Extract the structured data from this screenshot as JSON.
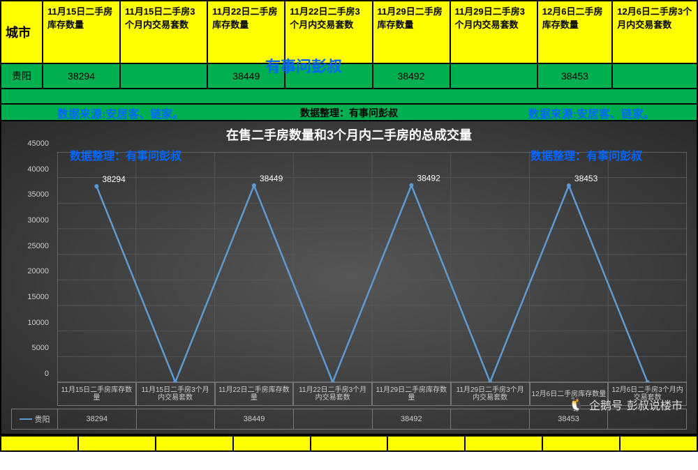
{
  "table": {
    "city_header": "城市",
    "columns": [
      "11月15日二手房库存数量",
      "11月15日二手房3个月内交易套数",
      "11月22日二手房库存数量",
      "11月22日二手房3个月内交易套数",
      "11月29日二手房库存数量",
      "11月29日二手房3个月内交易套数",
      "12月6日二手房库存数量",
      "12月6日二手房3个月内交易套数"
    ],
    "row_city": "贵阳",
    "row_values": [
      "38294",
      "",
      "38449",
      "",
      "38492",
      "",
      "38453",
      ""
    ],
    "header_bg": "#ffff00",
    "data_bg": "#00b050"
  },
  "overlay_title": "有事问彭叔",
  "credits": {
    "source_text": "数据来源:安居客、链家。",
    "compile_text_mid": "数据整理：有事问彭叔",
    "compile_text": "数据整理：有事问彭叔",
    "color": "#0066ff"
  },
  "chart": {
    "type": "line",
    "title": "在售二手房数量和3个月内二手房的总成交量",
    "title_mixed": "在售  手房数量和3个月内二手房的总成",
    "bg_from": "#565656",
    "bg_to": "#2b2b2b",
    "line_color": "#5b9bd5",
    "grid_color": "#555555",
    "text_color": "#cccccc",
    "ylim": [
      0,
      45000
    ],
    "ytick_step": 5000,
    "yticks": [
      0,
      5000,
      10000,
      15000,
      20000,
      25000,
      30000,
      35000,
      40000,
      45000
    ],
    "categories": [
      "11月15日二手房库存数量",
      "11月15日二手房3个月内交易套数",
      "11月22日二手房库存数量",
      "11月22日二手房3个月内交易套数",
      "11月29日二手房库存数量",
      "11月29日二手房3个月内交易套数",
      "12月6日二手房库存数量",
      "12月6日二手房3个月内交易套数"
    ],
    "values": [
      38294,
      0,
      38449,
      0,
      38492,
      0,
      38453,
      0
    ],
    "data_labels": [
      "38294",
      "",
      "38449",
      "",
      "38492",
      "",
      "38453",
      ""
    ],
    "legend_series": "贵阳",
    "legend_values": [
      "38294",
      "",
      "38449",
      "",
      "38492",
      "",
      "38453",
      ""
    ],
    "marker_radius": 3,
    "line_width": 2.5
  },
  "watermark": {
    "brand": "企鹅号",
    "author": "彭叔说楼市"
  }
}
